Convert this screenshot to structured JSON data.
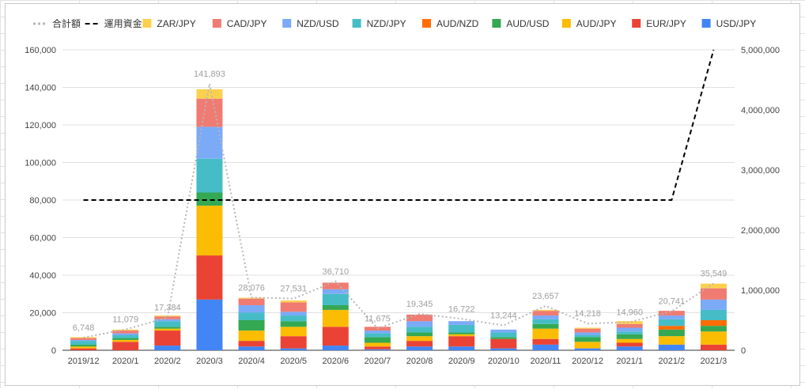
{
  "chart_data": {
    "type": "bar",
    "stacked": true,
    "categories": [
      "2019/12",
      "2020/1",
      "2020/2",
      "2020/3",
      "2020/4",
      "2020/5",
      "2020/6",
      "2020/7",
      "2020/8",
      "2020/9",
      "2020/10",
      "2020/11",
      "2020/12",
      "2021/1",
      "2021/2",
      "2021/3"
    ],
    "series": [
      {
        "name": "USD/JPY",
        "color": "#4285f4",
        "values": [
          0,
          0,
          2500,
          27000,
          2000,
          1000,
          2500,
          500,
          2000,
          2000,
          1000,
          3000,
          1000,
          2000,
          3000,
          0
        ]
      },
      {
        "name": "EUR/JPY",
        "color": "#ea4335",
        "values": [
          1000,
          4500,
          8000,
          23500,
          3000,
          6500,
          10000,
          1500,
          3000,
          5500,
          5000,
          3000,
          0,
          2000,
          0,
          3000
        ]
      },
      {
        "name": "AUD/JPY",
        "color": "#fbbc04",
        "values": [
          1000,
          1000,
          1000,
          26500,
          5500,
          5000,
          9000,
          2000,
          2500,
          1000,
          0,
          5500,
          3500,
          2000,
          4500,
          7000
        ]
      },
      {
        "name": "AUD/USD",
        "color": "#34a853",
        "values": [
          1000,
          1000,
          1000,
          7000,
          5500,
          3000,
          2500,
          3000,
          2000,
          1000,
          1000,
          2500,
          2500,
          2500,
          3500,
          3000
        ]
      },
      {
        "name": "AUD/NZD",
        "color": "#ff6d01",
        "values": [
          0,
          0,
          0,
          0,
          0,
          0,
          0,
          0,
          0,
          0,
          0,
          0,
          0,
          0,
          2000,
          3000
        ]
      },
      {
        "name": "NZD/JPY",
        "color": "#46bdc6",
        "values": [
          2000,
          1500,
          3000,
          18000,
          4000,
          3000,
          6000,
          2000,
          3000,
          4000,
          2500,
          2500,
          1000,
          1500,
          3500,
          5500
        ]
      },
      {
        "name": "NZD/USD",
        "color": "#7baaf7",
        "values": [
          500,
          1000,
          1000,
          17000,
          4000,
          2000,
          2500,
          1500,
          3000,
          2000,
          1500,
          2000,
          1500,
          2000,
          2000,
          5500
        ]
      },
      {
        "name": "CAD/JPY",
        "color": "#f07b72",
        "values": [
          1000,
          1500,
          1500,
          15000,
          3500,
          5000,
          3500,
          2000,
          3500,
          0,
          0,
          2500,
          2000,
          2000,
          2500,
          6000
        ]
      },
      {
        "name": "ZAR/JPY",
        "color": "#fcd04f",
        "values": [
          500,
          500,
          500,
          5000,
          500,
          1000,
          0,
          0,
          0,
          0,
          0,
          500,
          500,
          1500,
          0,
          2500
        ]
      }
    ],
    "total": {
      "name": "合計額",
      "color": "#b7b7b7",
      "values": [
        6748,
        11079,
        17384,
        141893,
        28076,
        27531,
        36710,
        11675,
        19345,
        16722,
        13244,
        23657,
        14218,
        14960,
        20741,
        35549
      ],
      "labels": [
        "6,748",
        "11,079",
        "17,384",
        "141,893",
        "28,076",
        "27,531",
        "36,710",
        "11,675",
        "19,345",
        "16,722",
        "13,244",
        "23,657",
        "14,218",
        "14,960",
        "20,741",
        "35,549"
      ]
    },
    "capital": {
      "name": "運用資金",
      "color": "#000000",
      "values": [
        2500000,
        2500000,
        2500000,
        2500000,
        2500000,
        2500000,
        2500000,
        2500000,
        2500000,
        2500000,
        2500000,
        2500000,
        2500000,
        2500000,
        2500000,
        5000000
      ]
    },
    "left_axis": {
      "ylim": [
        0,
        160000
      ],
      "ticks": [
        "0",
        "20,000",
        "40,000",
        "60,000",
        "80,000",
        "100,000",
        "120,000",
        "140,000",
        "160,000"
      ]
    },
    "right_axis": {
      "ylim": [
        0,
        5000000
      ],
      "ticks": [
        "0",
        "1,000,000",
        "2,000,000",
        "3,000,000",
        "4,000,000",
        "5,000,000"
      ]
    },
    "legend_order": [
      "合計額",
      "運用資金",
      "ZAR/JPY",
      "CAD/JPY",
      "NZD/USD",
      "NZD/JPY",
      "AUD/NZD",
      "AUD/USD",
      "AUD/JPY",
      "EUR/JPY",
      "USD/JPY"
    ],
    "legend_position": "top",
    "grid": true,
    "title": "",
    "xlabel": "",
    "ylabel": ""
  }
}
